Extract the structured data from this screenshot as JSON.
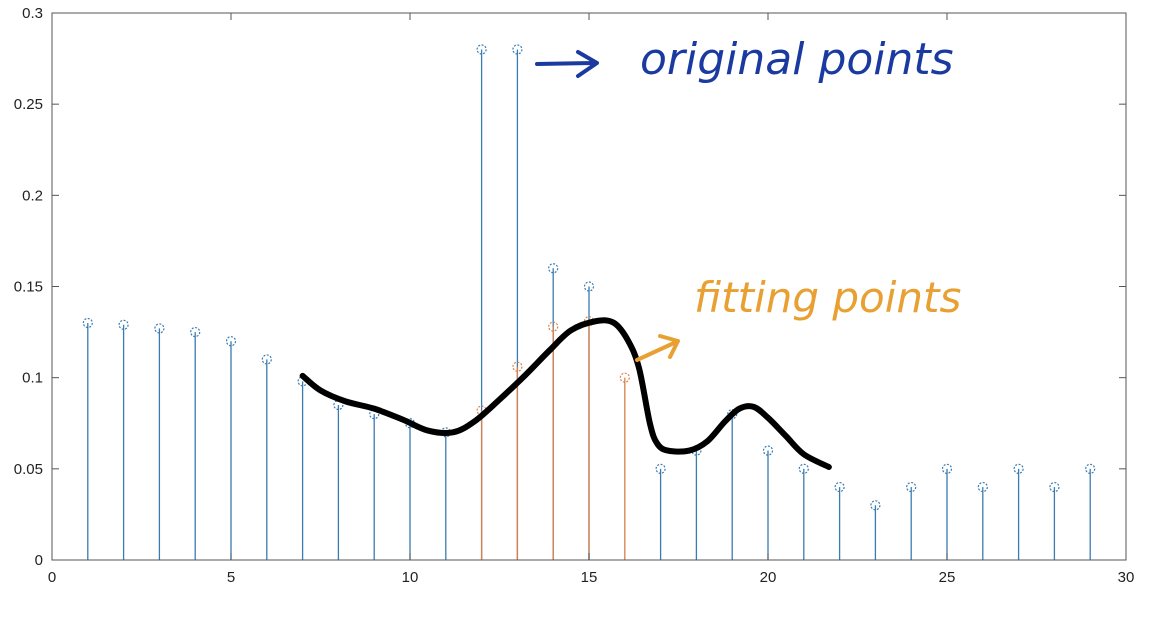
{
  "chart_data": {
    "type": "stem",
    "xlim": [
      0,
      30
    ],
    "ylim": [
      0,
      0.3
    ],
    "x_ticks": [
      "0",
      "5",
      "10",
      "15",
      "20",
      "25",
      "30"
    ],
    "y_ticks": [
      "0",
      "0.05",
      "0.1",
      "0.15",
      "0.2",
      "0.25",
      "0.3"
    ],
    "grid": false,
    "series": [
      {
        "color": "#3a7bb0",
        "points": [
          [
            1,
            0.13
          ],
          [
            2,
            0.129
          ],
          [
            3,
            0.127
          ],
          [
            4,
            0.125
          ],
          [
            5,
            0.12
          ],
          [
            6,
            0.11
          ],
          [
            7,
            0.098
          ],
          [
            8,
            0.085
          ],
          [
            9,
            0.08
          ],
          [
            10,
            0.075
          ],
          [
            11,
            0.07
          ],
          [
            12,
            0.28
          ],
          [
            13,
            0.28
          ],
          [
            14,
            0.16
          ],
          [
            15,
            0.15
          ],
          [
            17,
            0.05
          ],
          [
            18,
            0.06
          ],
          [
            19,
            0.08
          ],
          [
            20,
            0.06
          ],
          [
            21,
            0.05
          ],
          [
            22,
            0.04
          ],
          [
            23,
            0.03
          ],
          [
            24,
            0.04
          ],
          [
            25,
            0.05
          ],
          [
            26,
            0.04
          ],
          [
            27,
            0.05
          ],
          [
            28,
            0.04
          ],
          [
            29,
            0.05
          ]
        ]
      },
      {
        "color": "#d9804a",
        "points": [
          [
            12,
            0.082
          ],
          [
            13,
            0.106
          ],
          [
            14,
            0.128
          ],
          [
            15,
            0.131
          ],
          [
            16,
            0.1
          ]
        ]
      }
    ],
    "curve": {
      "color": "#000000",
      "points": [
        [
          7.0,
          0.101
        ],
        [
          7.5,
          0.093
        ],
        [
          8.2,
          0.087
        ],
        [
          9.0,
          0.083
        ],
        [
          9.8,
          0.077
        ],
        [
          10.5,
          0.071
        ],
        [
          11.2,
          0.07
        ],
        [
          11.8,
          0.076
        ],
        [
          12.5,
          0.088
        ],
        [
          13.2,
          0.101
        ],
        [
          13.9,
          0.115
        ],
        [
          14.5,
          0.126
        ],
        [
          15.2,
          0.131
        ],
        [
          15.7,
          0.13
        ],
        [
          16.1,
          0.12
        ],
        [
          16.4,
          0.105
        ],
        [
          16.7,
          0.075
        ],
        [
          16.9,
          0.064
        ],
        [
          17.2,
          0.06
        ],
        [
          17.8,
          0.06
        ],
        [
          18.3,
          0.065
        ],
        [
          18.8,
          0.076
        ],
        [
          19.2,
          0.083
        ],
        [
          19.6,
          0.084
        ],
        [
          20.0,
          0.078
        ],
        [
          20.5,
          0.068
        ],
        [
          21.0,
          0.058
        ],
        [
          21.7,
          0.051
        ]
      ]
    },
    "annotations": [
      {
        "text": "original points",
        "color": "#1a3aa0"
      },
      {
        "text": "fitting points",
        "color": "#e8a033"
      }
    ]
  }
}
